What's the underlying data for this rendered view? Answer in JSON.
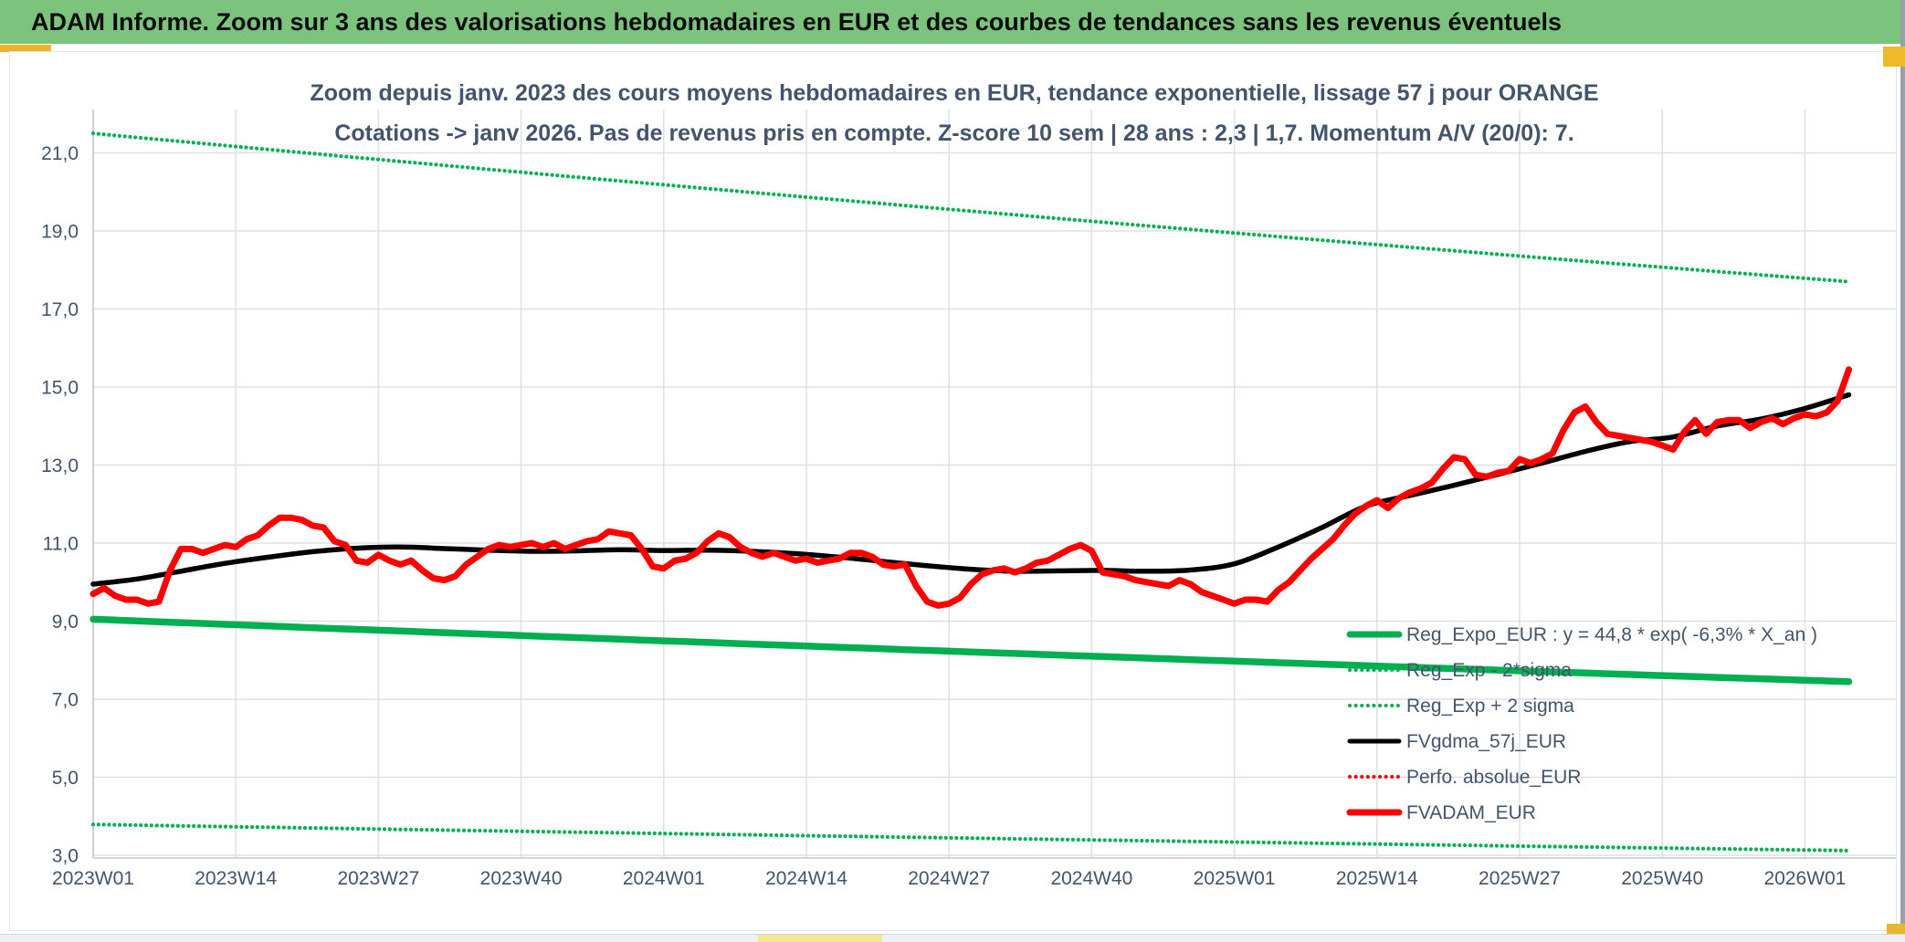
{
  "header": {
    "title": "ADAM Informe. Zoom sur 3 ans des valorisations hebdomadaires en EUR et des courbes de tendances sans les revenus éventuels"
  },
  "chart": {
    "title_line1": "Zoom depuis janv. 2023 des cours moyens hebdomadaires en EUR, tendance exponentielle, lissage 57 j pour ORANGE",
    "title_line2": "Cotations -> janv 2026. Pas de revenus pris en compte. Z-score 10 sem | 28 ans : 2,3 | 1,7. Momentum A/V (20/0): 7.",
    "colors": {
      "green": "#00b050",
      "red": "#ff0000",
      "black": "#000000",
      "axis_text": "#44546a",
      "gridline": "#dde0e5",
      "header_band": "#7cc47d",
      "gold_accent": "#edb32b"
    }
  },
  "chart_data": {
    "type": "line",
    "title": "Zoom depuis janv. 2023 des cours moyens hebdomadaires en EUR, tendance exponentielle, lissage 57 j pour ORANGE",
    "subtitle": "Cotations -> janv 2026. Pas de revenus pris en compte. Z-score 10 sem | 28 ans : 2,3 | 1,7. Momentum A/V (20/0): 7.",
    "x_unit": "ISO week index from 2023W01 (1 point per week)",
    "x_tick_labels": [
      "2023W01",
      "2023W14",
      "2023W27",
      "2023W40",
      "2024W01",
      "2024W14",
      "2024W27",
      "2024W40",
      "2025W01",
      "2025W14",
      "2025W27",
      "2025W40",
      "2026W01"
    ],
    "x_tick_week_index": [
      0,
      13,
      26,
      39,
      52,
      65,
      78,
      91,
      104,
      117,
      130,
      143,
      156
    ],
    "x_axis_last_week_index": 164,
    "y_tick_labels": [
      "3,0",
      "5,0",
      "7,0",
      "9,0",
      "11,0",
      "13,0",
      "15,0",
      "17,0",
      "19,0",
      "21,0"
    ],
    "ylim": [
      2.9,
      22.1
    ],
    "grid": "both",
    "legend_position": "inside-right-bottom",
    "legend": [
      {
        "label": "Reg_Expo_EUR : y = 44,8 * exp( -6,3% * X_an )",
        "color": "#00b050",
        "style": "solid",
        "width": 7
      },
      {
        "label": "Reg_Exp - 2*sigma",
        "color": "#00b050",
        "style": "dotted",
        "width": 4
      },
      {
        "label": "Reg_Exp + 2 sigma",
        "color": "#00b050",
        "style": "dotted",
        "width": 4
      },
      {
        "label": "FVgdma_57j_EUR",
        "color": "#000000",
        "style": "solid",
        "width": 5
      },
      {
        "label": "Perfo. absolue_EUR",
        "color": "#ff0000",
        "style": "dotted",
        "width": 4
      },
      {
        "label": "FVADAM_EUR",
        "color": "#ff0000",
        "style": "solid",
        "width": 7
      }
    ],
    "series": [
      {
        "name": "FVADAM_EUR",
        "color": "#ff0000",
        "style": "solid",
        "week_start": 0,
        "values": [
          9.7,
          9.85,
          9.65,
          9.55,
          9.55,
          9.45,
          9.5,
          10.3,
          10.85,
          10.85,
          10.75,
          10.85,
          10.95,
          10.9,
          11.1,
          11.2,
          11.45,
          11.65,
          11.65,
          11.6,
          11.45,
          11.4,
          11.05,
          10.95,
          10.55,
          10.5,
          10.7,
          10.55,
          10.45,
          10.55,
          10.3,
          10.1,
          10.05,
          10.15,
          10.45,
          10.65,
          10.85,
          10.95,
          10.9,
          10.95,
          11.0,
          10.9,
          11.0,
          10.85,
          10.95,
          11.05,
          11.1,
          11.3,
          11.25,
          11.2,
          10.85,
          10.4,
          10.35,
          10.55,
          10.6,
          10.75,
          11.05,
          11.25,
          11.15,
          10.9,
          10.75,
          10.65,
          10.75,
          10.65,
          10.55,
          10.6,
          10.5,
          10.55,
          10.6,
          10.75,
          10.75,
          10.65,
          10.45,
          10.4,
          10.45,
          9.9,
          9.5,
          9.4,
          9.45,
          9.6,
          9.95,
          10.2,
          10.3,
          10.35,
          10.25,
          10.35,
          10.5,
          10.55,
          10.7,
          10.85,
          10.95,
          10.8,
          10.25,
          10.2,
          10.15,
          10.05,
          10.0,
          9.95,
          9.9,
          10.05,
          9.95,
          9.75,
          9.65,
          9.55,
          9.45,
          9.55,
          9.55,
          9.5,
          9.8,
          10.0,
          10.3,
          10.6,
          10.85,
          11.1,
          11.45,
          11.75,
          11.95,
          12.1,
          11.9,
          12.15,
          12.3,
          12.4,
          12.55,
          12.9,
          13.2,
          13.15,
          12.75,
          12.7,
          12.8,
          12.85,
          13.15,
          13.05,
          13.15,
          13.3,
          13.9,
          14.35,
          14.5,
          14.1,
          13.8,
          13.75,
          13.7,
          13.65,
          13.6,
          13.5,
          13.4,
          13.85,
          14.15,
          13.8,
          14.1,
          14.15,
          14.15,
          13.95,
          14.1,
          14.2,
          14.05,
          14.2,
          14.3,
          14.25,
          14.35,
          14.65,
          15.45
        ]
      },
      {
        "name": "Perfo. absolue_EUR",
        "color": "#ff0000",
        "style": "dotted",
        "note": "coincides with FVADAM_EUR (no revenues counted) — hidden beneath the solid red line",
        "values_same_as": "FVADAM_EUR"
      },
      {
        "name": "FVgdma_57j_EUR",
        "color": "#000000",
        "style": "solid",
        "week_step": 4,
        "anchor_values": [
          9.95,
          10.08,
          10.28,
          10.48,
          10.64,
          10.78,
          10.87,
          10.9,
          10.86,
          10.82,
          10.79,
          10.8,
          10.83,
          10.81,
          10.82,
          10.79,
          10.73,
          10.64,
          10.53,
          10.42,
          10.33,
          10.28,
          10.29,
          10.3,
          10.28,
          10.31,
          10.47,
          10.9,
          11.4,
          11.95,
          12.22,
          12.48,
          12.76,
          13.05,
          13.35,
          13.6,
          13.72,
          14.0,
          14.18,
          14.45,
          14.8
        ]
      },
      {
        "name": "Reg_Expo_EUR",
        "color": "#00b050",
        "style": "solid",
        "model": "exponential",
        "formula": "y = 44,8 * exp( -6,3% * X_an )",
        "start_value": 9.05,
        "end_value": 7.45,
        "end_week": 160
      },
      {
        "name": "Reg_Exp + 2 sigma",
        "color": "#00b050",
        "style": "dotted",
        "model": "exponential",
        "start_value": 21.5,
        "end_value": 17.7,
        "end_week": 160
      },
      {
        "name": "Reg_Exp - 2*sigma",
        "color": "#00b050",
        "style": "dotted",
        "model": "exponential",
        "start_value": 3.79,
        "end_value": 3.12,
        "end_week": 160
      }
    ]
  }
}
